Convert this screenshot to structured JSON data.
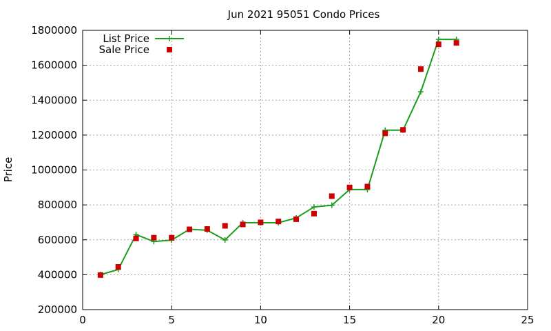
{
  "chart_data": {
    "type": "line",
    "title": "Jun 2021 95051 Condo Prices",
    "xlabel": "",
    "ylabel": "Price",
    "xlim": [
      0,
      25
    ],
    "ylim": [
      200000,
      1800000
    ],
    "xticks": [
      0,
      5,
      10,
      15,
      20,
      25
    ],
    "yticks": [
      200000,
      400000,
      600000,
      800000,
      1000000,
      1200000,
      1400000,
      1600000,
      1800000
    ],
    "grid": true,
    "legend_position": "top-left",
    "series": [
      {
        "name": "List Price",
        "style": "line-with-plus-markers",
        "color": "#1a9e1a",
        "x": [
          1,
          2,
          3,
          4,
          5,
          6,
          7,
          8,
          9,
          10,
          11,
          12,
          13,
          14,
          15,
          16,
          17,
          18,
          19,
          20,
          21
        ],
        "y": [
          400000,
          430000,
          630000,
          590000,
          598000,
          660000,
          655000,
          599000,
          698000,
          698000,
          698000,
          725000,
          788000,
          798000,
          888000,
          888000,
          1228000,
          1228000,
          1448000,
          1748000,
          1748000
        ]
      },
      {
        "name": "Sale Price",
        "style": "square-markers",
        "color": "#cc0000",
        "x": [
          1,
          2,
          3,
          4,
          5,
          6,
          7,
          8,
          9,
          10,
          11,
          12,
          13,
          14,
          15,
          16,
          17,
          18,
          19,
          20,
          21
        ],
        "y": [
          398000,
          445000,
          608000,
          612000,
          612000,
          660000,
          662000,
          680000,
          688000,
          700000,
          705000,
          718000,
          750000,
          850000,
          900000,
          905000,
          1210000,
          1230000,
          1578000,
          1720000,
          1728000
        ]
      }
    ]
  }
}
